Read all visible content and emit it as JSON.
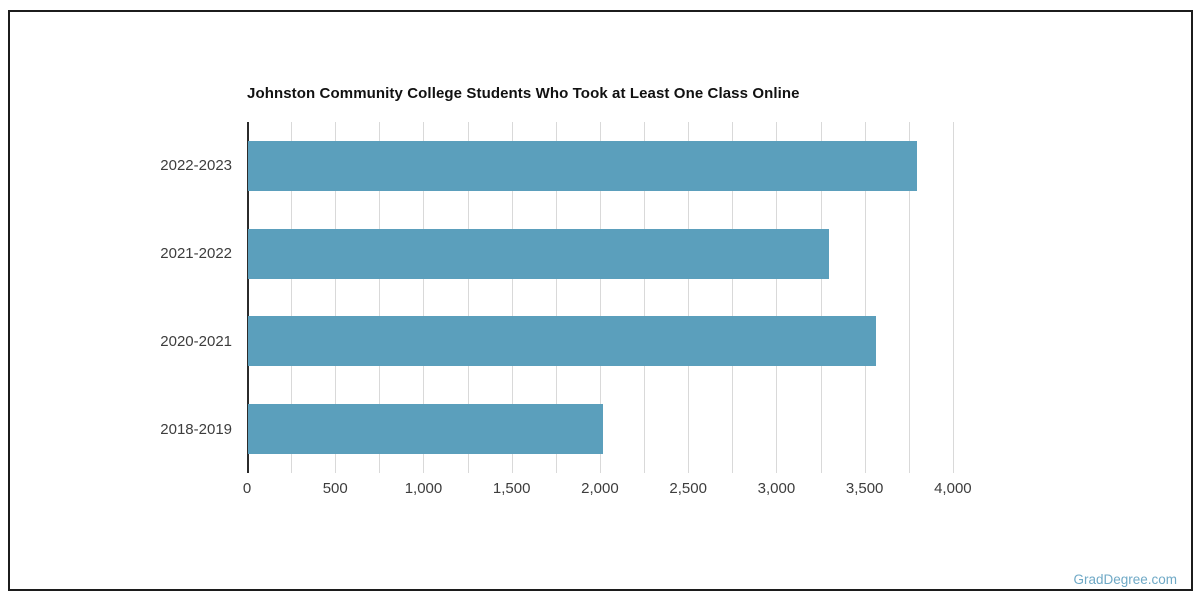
{
  "watermark": "GradDegree.com",
  "chart_data": {
    "type": "bar",
    "orientation": "horizontal",
    "title": "Johnston Community College Students Who Took at Least One Class Online",
    "categories": [
      "2022-2023",
      "2021-2022",
      "2020-2021",
      "2018-2019"
    ],
    "values": [
      3790,
      3290,
      3560,
      2010
    ],
    "xlabel": "",
    "ylabel": "",
    "xlim": [
      0,
      4250
    ],
    "x_ticks": [
      0,
      500,
      1000,
      1500,
      2000,
      2500,
      3000,
      3500,
      4000
    ],
    "x_tick_labels": [
      "0",
      "500",
      "1,000",
      "1,500",
      "2,000",
      "2,500",
      "3,000",
      "3,500",
      "4,000"
    ],
    "minor_grid_step": 250,
    "grid": true,
    "legend": false,
    "colors": {
      "bar": "#5B9FBC",
      "gridline": "#d9d9d9",
      "axis_line": "#2b2b2b",
      "tick_label": "#3d3d3d",
      "title": "#111111",
      "watermark": "#6FA9C6",
      "frame_border": "#1c1c1c"
    }
  }
}
